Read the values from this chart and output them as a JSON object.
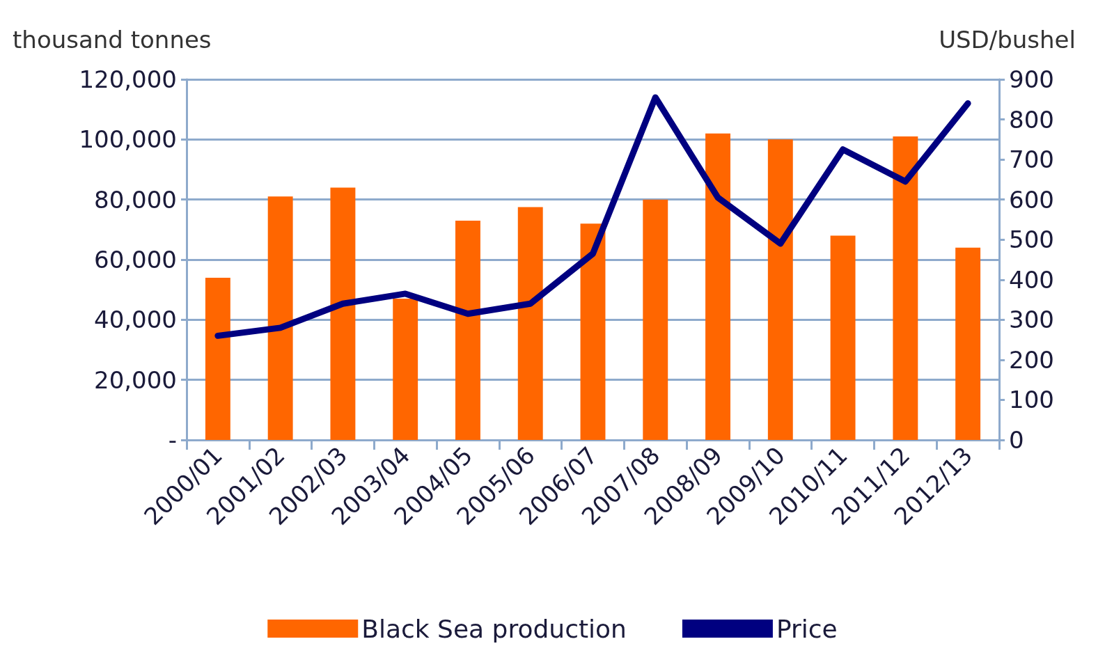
{
  "chart_data": {
    "type": "bar",
    "ylabel": "thousand tonnes",
    "y2label": "USD/bushel",
    "categories": [
      "2000/01",
      "2001/02",
      "2002/03",
      "2003/04",
      "2004/05",
      "2005/06",
      "2006/07",
      "2007/08",
      "2008/09",
      "2009/10",
      "2010/11",
      "2011/12",
      "2012/13"
    ],
    "series": [
      {
        "name": "Black Sea production",
        "color": "#ff6600",
        "values": [
          54000,
          81000,
          84000,
          47000,
          73000,
          77500,
          72000,
          80000,
          102000,
          100000,
          68000,
          101000,
          64000
        ]
      },
      {
        "name": "Price",
        "type": "line",
        "axis": "y2",
        "color": "#000080",
        "values": [
          260,
          280,
          340,
          365,
          315,
          340,
          465,
          855,
          605,
          490,
          725,
          645,
          840
        ]
      }
    ],
    "ylim": [
      0,
      120000
    ],
    "yticks": [
      {
        "value": 0,
        "label": "-"
      },
      {
        "value": 20000,
        "label": "20,000"
      },
      {
        "value": 40000,
        "label": "40,000"
      },
      {
        "value": 60000,
        "label": "60,000"
      },
      {
        "value": 80000,
        "label": "80,000"
      },
      {
        "value": 100000,
        "label": "100,000"
      },
      {
        "value": 120000,
        "label": "120,000"
      }
    ],
    "y2lim": [
      0,
      900
    ],
    "y2ticks": [
      0,
      100,
      200,
      300,
      400,
      500,
      600,
      700,
      800,
      900
    ],
    "grid": "y",
    "legend": "bottom"
  }
}
